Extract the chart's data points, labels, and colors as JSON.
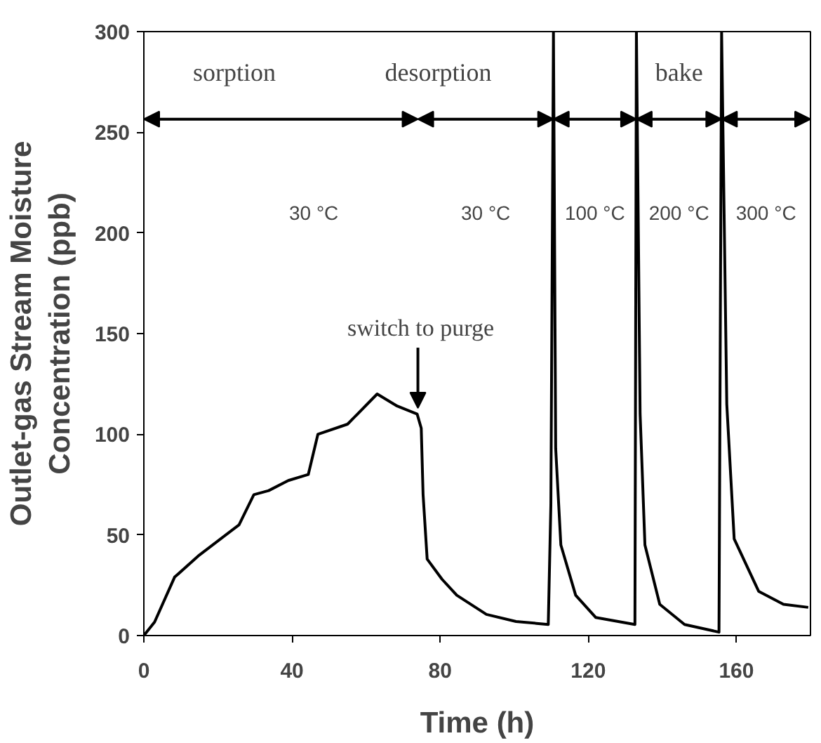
{
  "chart_data": {
    "type": "line",
    "xlabel": "Time (h)",
    "ylabel": "Outlet-gas Stream Moisture\nConcentration (ppb)",
    "xlim": [
      0,
      180
    ],
    "xticks": [
      0,
      40,
      80,
      120,
      160
    ],
    "ylim": [
      0,
      300
    ],
    "yticks": [
      0,
      50,
      100,
      150,
      200,
      250,
      300
    ],
    "grid": false,
    "series": [
      {
        "color": "#000000",
        "x": [
          0,
          2.9,
          8.3,
          15,
          25.7,
          29.7,
          33.7,
          39,
          44.4,
          47,
          55,
          63,
          68.4,
          73.8,
          74.9,
          75.4,
          76.5,
          80.5,
          84.5,
          92.5,
          100.5,
          109.2,
          109.9,
          110.6,
          111.2,
          112.6,
          116.6,
          122,
          132.6,
          133,
          134,
          135.3,
          139.3,
          146,
          155.3,
          156,
          157.4,
          159.4,
          166,
          172.7,
          179.4
        ],
        "values": [
          0,
          6.7,
          29,
          40,
          55,
          70,
          72,
          77,
          80,
          100,
          105,
          120,
          114,
          110,
          103,
          70,
          38,
          28,
          20,
          10.5,
          7,
          5.5,
          65,
          300,
          93,
          45,
          20,
          9,
          5.5,
          300,
          110,
          45,
          15.5,
          5.5,
          1.7,
          300,
          115,
          48,
          22,
          15.5,
          14
        ]
      }
    ],
    "annotations": [
      "sorption",
      "desorption",
      "bake",
      "30 °C",
      "30 °C",
      "100 °C",
      "200 °C",
      "300 °C",
      {
        "text": "switch to purge",
        "x": 74,
        "y": 113
      }
    ]
  }
}
